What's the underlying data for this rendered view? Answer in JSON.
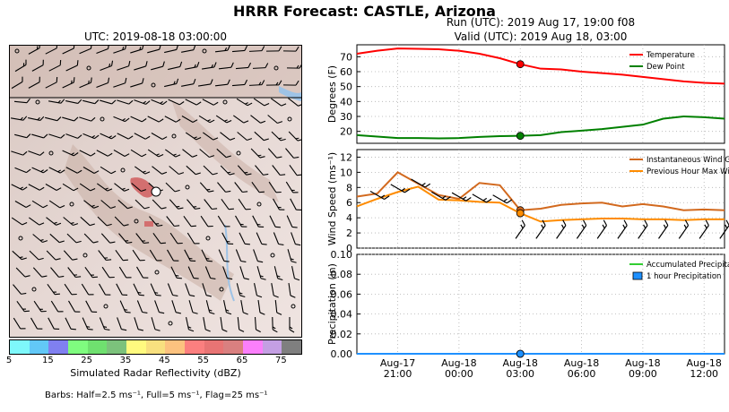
{
  "title": "HRRR Forecast: CASTLE, Arizona",
  "map": {
    "title": "UTC: 2019-08-18 03:00:00",
    "colorbar_label": "Simulated Radar Reflectivity (dBZ)",
    "colorbar_ticks": [
      "5",
      "15",
      "25",
      "35",
      "45",
      "55",
      "65",
      "75"
    ],
    "colorbar_colors": [
      "#7ef8fb",
      "#62c8f7",
      "#8080f0",
      "#7ffc7f",
      "#6fe06f",
      "#7cc27c",
      "#fffa7f",
      "#f8e07f",
      "#fcc27f",
      "#fb7f7f",
      "#e87474",
      "#d98080",
      "#fb7ffb",
      "#c49fe3",
      "#7f7f7f"
    ],
    "barbs_note": "Barbs: Half=2.5 ms⁻¹, Full=5 ms⁻¹, Flag=25 ms⁻¹"
  },
  "run_title": "Run (UTC): 2019 Aug 17, 19:00 f08",
  "valid_title": "Valid (UTC): 2019 Aug 18, 03:00",
  "x_tick_labels": [
    {
      "date": "Aug-17",
      "time": "21:00"
    },
    {
      "date": "Aug-18",
      "time": "00:00"
    },
    {
      "date": "Aug-18",
      "time": "03:00"
    },
    {
      "date": "Aug-18",
      "time": "06:00"
    },
    {
      "date": "Aug-18",
      "time": "09:00"
    },
    {
      "date": "Aug-18",
      "time": "12:00"
    }
  ],
  "chart_data": [
    {
      "type": "line",
      "ylabel": "Degrees (F)",
      "ylim": [
        12,
        78
      ],
      "yticks": [
        20,
        30,
        40,
        50,
        60,
        70
      ],
      "x": [
        "2019-08-17 19:00",
        "2019-08-17 20:00",
        "2019-08-17 21:00",
        "2019-08-17 22:00",
        "2019-08-17 23:00",
        "2019-08-18 00:00",
        "2019-08-18 01:00",
        "2019-08-18 02:00",
        "2019-08-18 03:00",
        "2019-08-18 04:00",
        "2019-08-18 05:00",
        "2019-08-18 06:00",
        "2019-08-18 07:00",
        "2019-08-18 08:00",
        "2019-08-18 09:00",
        "2019-08-18 10:00",
        "2019-08-18 11:00",
        "2019-08-18 12:00",
        "2019-08-18 13:00"
      ],
      "series": [
        {
          "name": "Temperature",
          "color": "#ff0000",
          "values": [
            72,
            74,
            75.5,
            75.3,
            75,
            74,
            72,
            69,
            65,
            62,
            61.5,
            60,
            59,
            58,
            56.5,
            55,
            53.5,
            52.5,
            52
          ]
        },
        {
          "name": "Dew Point",
          "color": "#008000",
          "values": [
            17.5,
            16.5,
            15.5,
            15.5,
            15.3,
            15.5,
            16.3,
            16.8,
            17,
            17.5,
            19.5,
            20.5,
            21.5,
            23,
            24.5,
            28.5,
            30,
            29.5,
            28.5
          ]
        }
      ],
      "marker_index": 8,
      "legend": "top-right",
      "grid": true
    },
    {
      "type": "line",
      "ylabel": "Wind Speed (ms⁻¹)",
      "ylim": [
        0,
        13
      ],
      "yticks": [
        0,
        2,
        4,
        6,
        8,
        10,
        12
      ],
      "x": [
        "2019-08-17 19:00",
        "2019-08-17 20:00",
        "2019-08-17 21:00",
        "2019-08-17 22:00",
        "2019-08-17 23:00",
        "2019-08-18 00:00",
        "2019-08-18 01:00",
        "2019-08-18 02:00",
        "2019-08-18 03:00",
        "2019-08-18 04:00",
        "2019-08-18 05:00",
        "2019-08-18 06:00",
        "2019-08-18 07:00",
        "2019-08-18 08:00",
        "2019-08-18 09:00",
        "2019-08-18 10:00",
        "2019-08-18 11:00",
        "2019-08-18 12:00",
        "2019-08-18 13:00"
      ],
      "series": [
        {
          "name": "Instantaneous Wind Gust",
          "color": "#d2691e",
          "values": [
            6.8,
            7.2,
            10,
            8.5,
            7,
            6.5,
            8.6,
            8.3,
            5,
            5.2,
            5.7,
            5.9,
            6,
            5.5,
            5.8,
            5.5,
            5,
            5.1,
            5
          ]
        },
        {
          "name": "Previous Hour Max Wind",
          "color": "#ff8c00",
          "values": [
            5.5,
            6.5,
            7.4,
            8.1,
            6.4,
            6.3,
            6.1,
            6,
            4.6,
            3.5,
            3.7,
            3.8,
            3.9,
            3.9,
            3.8,
            3.8,
            3.7,
            3.8,
            3.8
          ]
        }
      ],
      "marker_index": 8,
      "legend": "top-right",
      "grid": true
    },
    {
      "type": "bar",
      "ylabel": "Precipitation (in)",
      "ylim": [
        0,
        0.1
      ],
      "yticks": [
        "0.00",
        "0.02",
        "0.04",
        "0.06",
        "0.08",
        "0.10"
      ],
      "x": [
        "2019-08-17 19:00",
        "2019-08-17 20:00",
        "2019-08-17 21:00",
        "2019-08-17 22:00",
        "2019-08-17 23:00",
        "2019-08-18 00:00",
        "2019-08-18 01:00",
        "2019-08-18 02:00",
        "2019-08-18 03:00",
        "2019-08-18 04:00",
        "2019-08-18 05:00",
        "2019-08-18 06:00",
        "2019-08-18 07:00",
        "2019-08-18 08:00",
        "2019-08-18 09:00",
        "2019-08-18 10:00",
        "2019-08-18 11:00",
        "2019-08-18 12:00",
        "2019-08-18 13:00"
      ],
      "series": [
        {
          "name": "Accumulated Precipitation",
          "color": "#32cd32",
          "values": [
            0,
            0,
            0,
            0,
            0,
            0,
            0,
            0,
            0,
            0,
            0,
            0,
            0,
            0,
            0,
            0,
            0,
            0,
            0
          ]
        },
        {
          "name": "1 hour Precipitation",
          "color": "#1e90ff",
          "values": [
            0,
            0,
            0,
            0,
            0,
            0,
            0,
            0,
            0,
            0,
            0,
            0,
            0,
            0,
            0,
            0,
            0,
            0,
            0
          ]
        }
      ],
      "marker_index": 8,
      "legend": "top-right",
      "grid": true
    }
  ]
}
